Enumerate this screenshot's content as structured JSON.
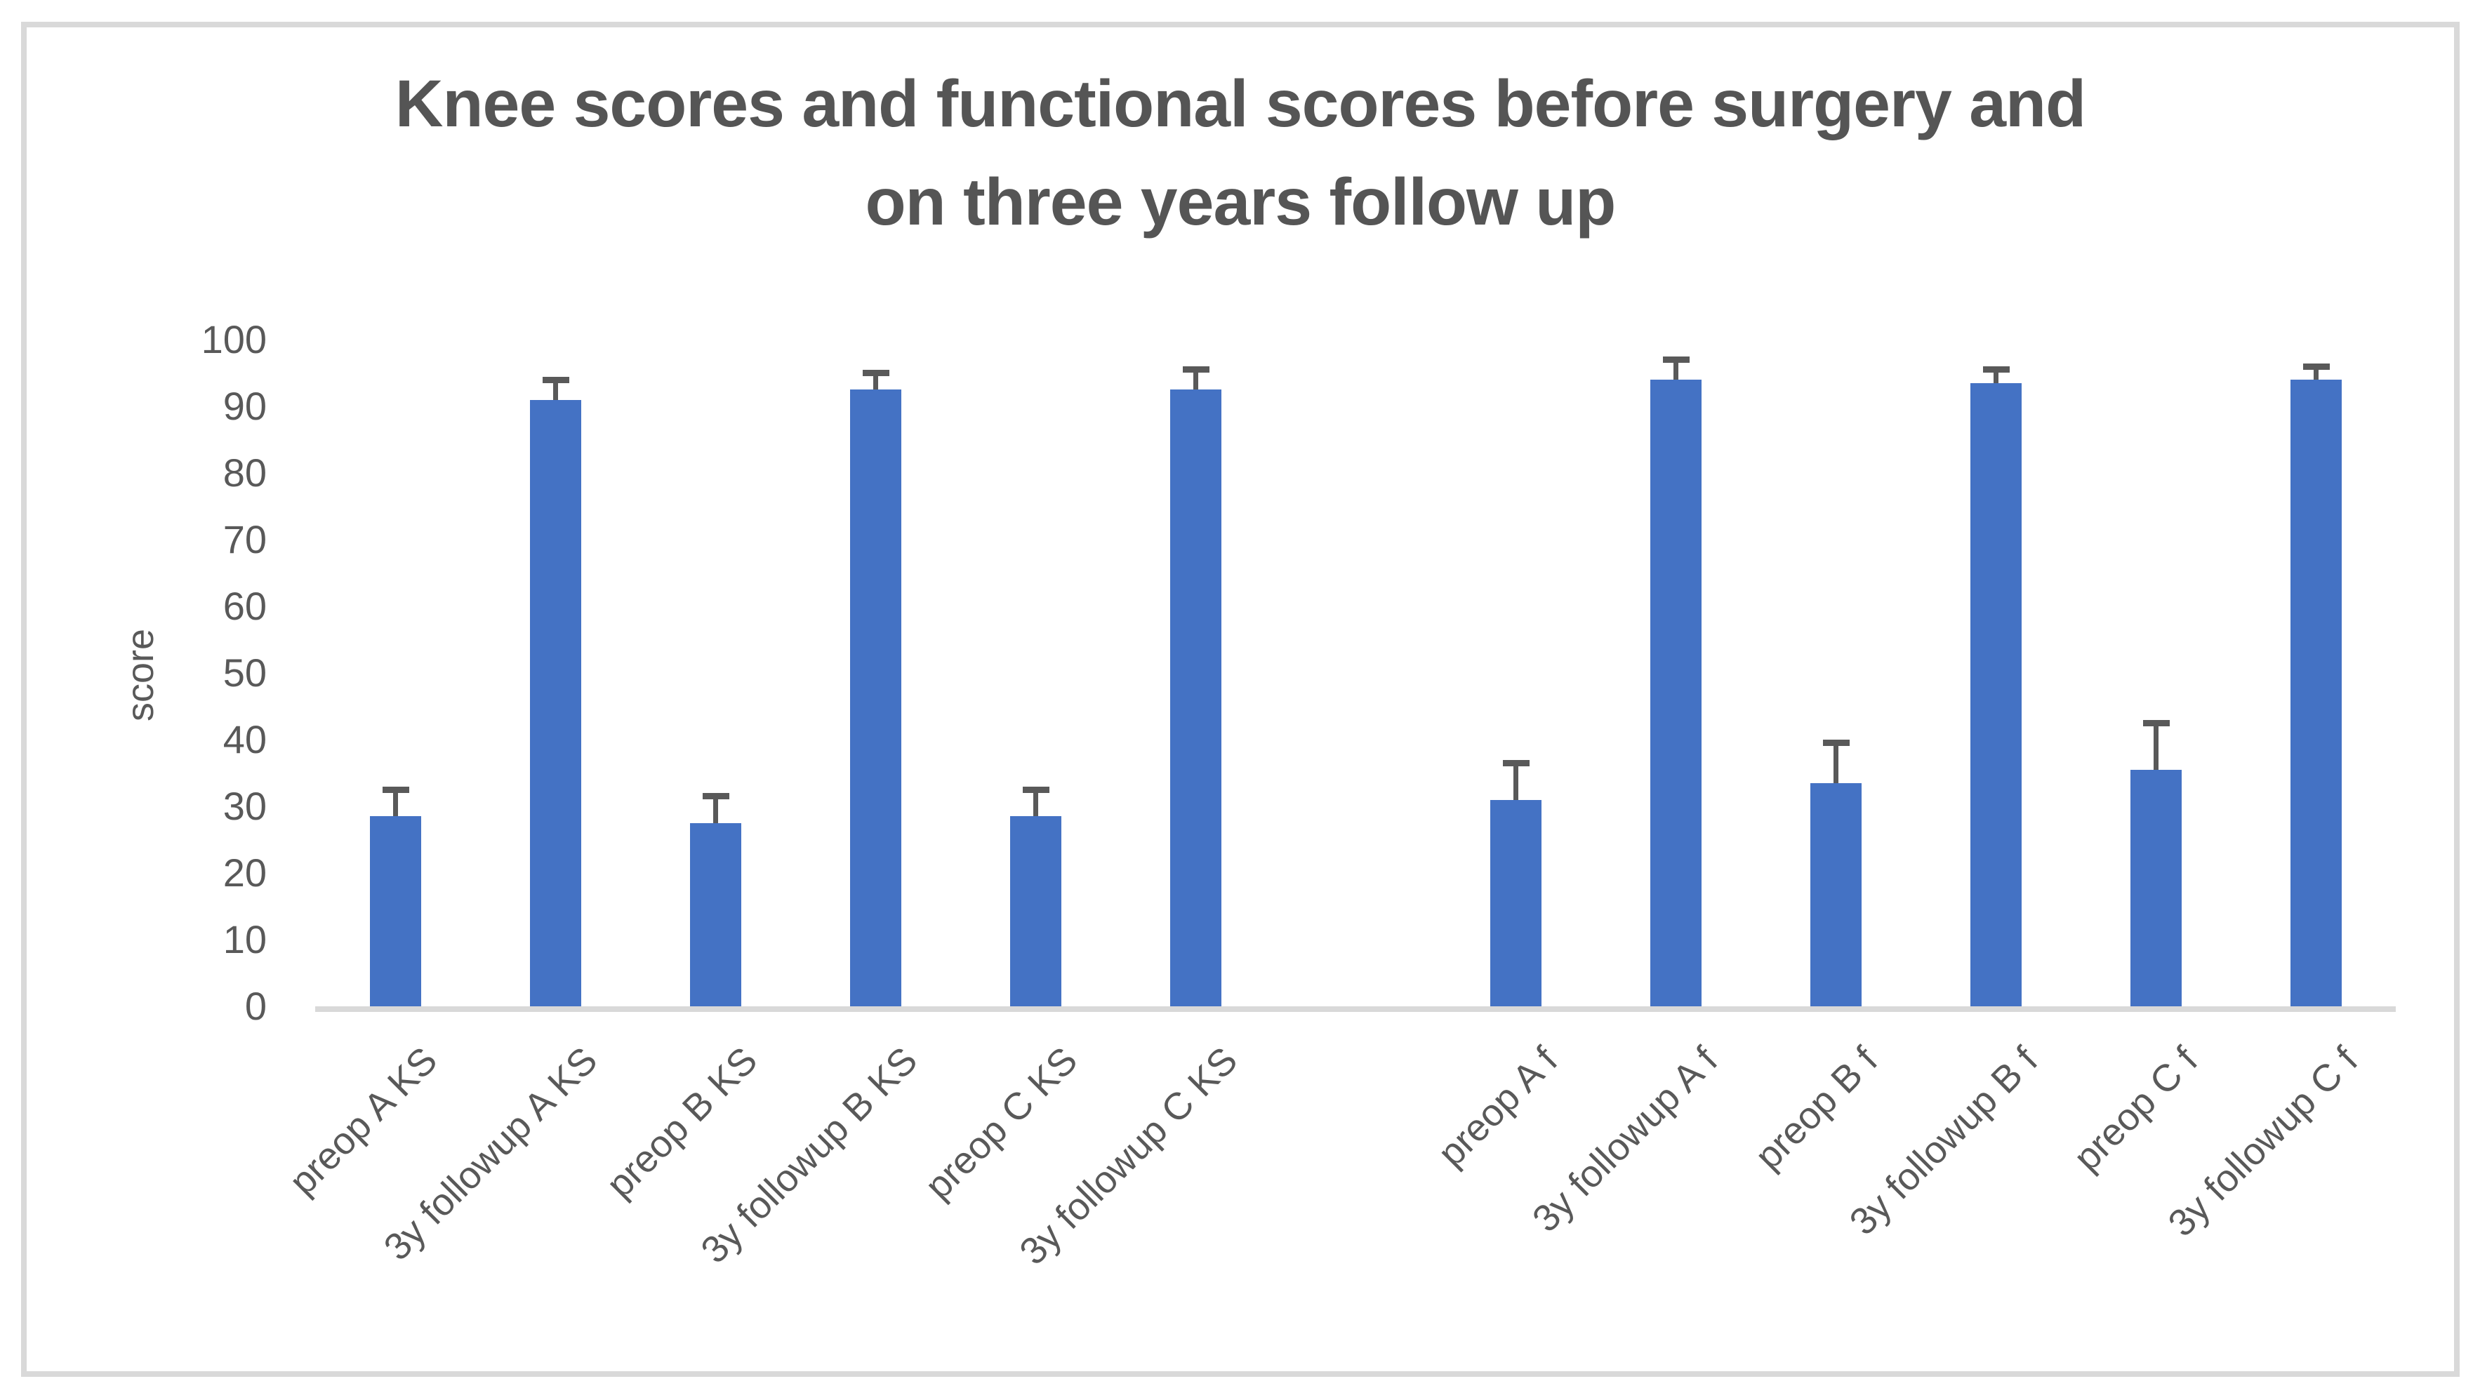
{
  "title": {
    "line1": "Knee scores and functional scores before surgery and",
    "line2": "on three years follow up"
  },
  "y_axis": {
    "label": "score",
    "ticks": [
      "100",
      "90",
      "80",
      "70",
      "60",
      "50",
      "40",
      "30",
      "20",
      "10",
      "0"
    ]
  },
  "colors": {
    "bar": "#4472C4",
    "error_bar": "#595959",
    "axis_line": "#D9D9D9",
    "tick_text": "#595959",
    "title_text": "#555555",
    "frame_border": "#D9D9D9",
    "background": "#FFFFFF"
  },
  "chart_data": {
    "type": "bar",
    "title": "Knee scores and functional scores before surgery and on three years follow up",
    "xlabel": "",
    "ylabel": "score",
    "ylim": [
      0,
      100
    ],
    "ytick_step": 10,
    "grid": false,
    "legend": false,
    "bar_color": "#4472C4",
    "error_bar_color": "#595959",
    "group_break_after_index": 5,
    "categories": [
      "preop A KS",
      "3y followup A KS",
      "preop B KS",
      "3y followup B KS",
      "preop C KS",
      "3y followup C KS",
      "preop A f",
      "3y followup A f",
      "preop B f",
      "3y followup B f",
      "preop C f",
      "3y followup C f"
    ],
    "series": [
      {
        "name": "score",
        "values": [
          28.5,
          91,
          27.5,
          92.5,
          28.5,
          92.5,
          31,
          94,
          33.5,
          93.5,
          35.5,
          94
        ],
        "errors_plus": [
          4,
          3,
          4,
          2.5,
          4,
          3,
          5.5,
          3,
          6,
          2,
          7,
          2
        ]
      }
    ]
  }
}
